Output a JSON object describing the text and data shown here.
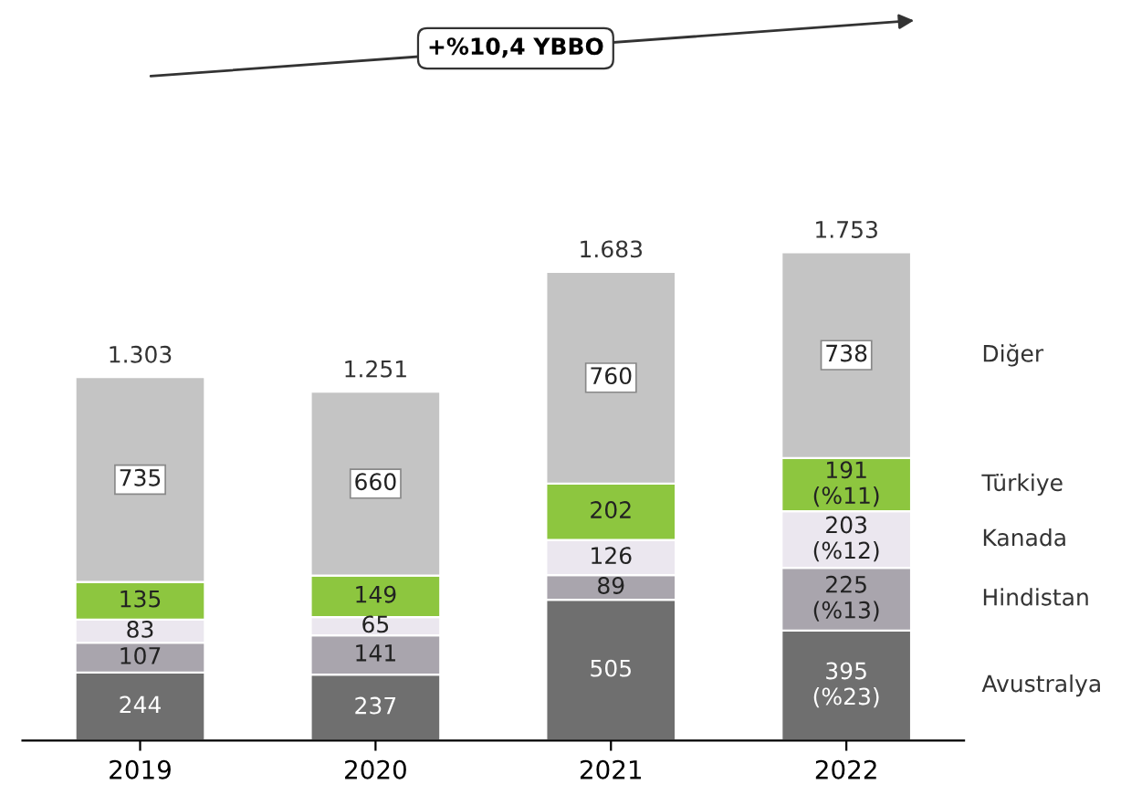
{
  "chart_data": {
    "type": "bar",
    "stacked": true,
    "categories": [
      "2019",
      "2020",
      "2021",
      "2022"
    ],
    "series": [
      {
        "name": "Avustralya",
        "color": "#6f6f6f",
        "values": [
          244,
          237,
          505,
          395
        ],
        "value_labels": [
          "244",
          "237",
          "505",
          "395\n(%23)"
        ]
      },
      {
        "name": "Hindistan",
        "color": "#a9a5ad",
        "values": [
          107,
          141,
          89,
          225
        ],
        "value_labels": [
          "107",
          "141",
          "89",
          "225\n(%13)"
        ]
      },
      {
        "name": "Kanada",
        "color": "#ebe7ef",
        "values": [
          83,
          65,
          126,
          203
        ],
        "value_labels": [
          "83",
          "65",
          "126",
          "203\n(%12)"
        ]
      },
      {
        "name": "Türkiye",
        "color": "#8dc63f",
        "values": [
          135,
          149,
          202,
          191
        ],
        "value_labels": [
          "135",
          "149",
          "202",
          "191\n(%11)"
        ]
      },
      {
        "name": "Diğer",
        "color": "#c4c4c4",
        "values": [
          735,
          660,
          760,
          738
        ],
        "value_labels": [
          "735",
          "660",
          "760",
          "738"
        ]
      }
    ],
    "totals": [
      "1.303",
      "1.251",
      "1.683",
      "1.753"
    ],
    "annotations": [
      "+%10,4 YBBO"
    ],
    "grid": false,
    "legend": false
  }
}
